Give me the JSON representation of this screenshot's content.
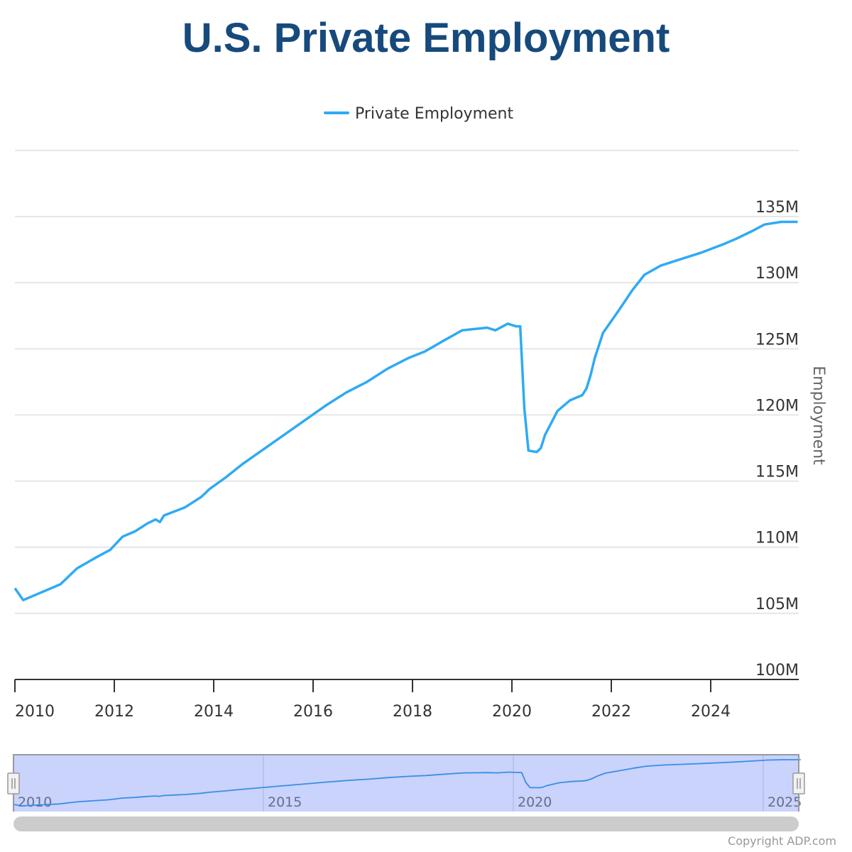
{
  "colors": {
    "title": "#174a7c",
    "series": "#2eaaf5",
    "navigator_mask": "#c9d3fc",
    "scrollbar": "#cccccc",
    "grid": "#e6e6e6"
  },
  "copyright": "Copyright ADP.com",
  "chart_data": {
    "type": "line",
    "title": "U.S. Private Employment",
    "ylabel": "Employment",
    "xlabel": "",
    "legend": {
      "position": "top-center",
      "entries": [
        "Private Employment"
      ]
    },
    "grid": true,
    "ylim": [
      100000000,
      140000000
    ],
    "y_ticks": [
      "100M",
      "105M",
      "110M",
      "115M",
      "120M",
      "125M",
      "130M",
      "135M"
    ],
    "y_tick_values": [
      100000000,
      105000000,
      110000000,
      115000000,
      120000000,
      125000000,
      130000000,
      135000000
    ],
    "x_ticks": [
      "2010",
      "2012",
      "2014",
      "2016",
      "2018",
      "2020",
      "2022",
      "2024"
    ],
    "xlim": [
      "2010-01",
      "2025-10"
    ],
    "navigator_ticks": [
      "2010",
      "2015",
      "2020",
      "2025"
    ],
    "series": [
      {
        "name": "Private Employment",
        "points": [
          [
            "2010-01",
            106.9
          ],
          [
            "2010-03",
            106.0
          ],
          [
            "2010-12",
            107.2
          ],
          [
            "2011-04",
            108.4
          ],
          [
            "2011-09",
            109.3
          ],
          [
            "2011-12",
            109.8
          ],
          [
            "2012-03",
            110.8
          ],
          [
            "2012-06",
            111.2
          ],
          [
            "2012-09",
            111.8
          ],
          [
            "2012-11",
            112.1
          ],
          [
            "2012-12",
            111.9
          ],
          [
            "2013-01",
            112.4
          ],
          [
            "2013-06",
            113.0
          ],
          [
            "2013-10",
            113.8
          ],
          [
            "2013-12",
            114.4
          ],
          [
            "2014-04",
            115.3
          ],
          [
            "2014-08",
            116.3
          ],
          [
            "2015-01",
            117.4
          ],
          [
            "2015-06",
            118.5
          ],
          [
            "2015-11",
            119.6
          ],
          [
            "2016-04",
            120.7
          ],
          [
            "2016-09",
            121.7
          ],
          [
            "2017-02",
            122.5
          ],
          [
            "2017-07",
            123.5
          ],
          [
            "2017-12",
            124.3
          ],
          [
            "2018-04",
            124.8
          ],
          [
            "2018-09",
            125.7
          ],
          [
            "2019-01",
            126.4
          ],
          [
            "2019-07",
            126.6
          ],
          [
            "2019-09",
            126.4
          ],
          [
            "2019-12",
            126.9
          ],
          [
            "2020-02",
            126.7
          ],
          [
            "2020-03",
            126.7
          ],
          [
            "2020-04",
            120.5
          ],
          [
            "2020-05",
            117.3
          ],
          [
            "2020-07",
            117.2
          ],
          [
            "2020-08",
            117.5
          ],
          [
            "2020-09",
            118.5
          ],
          [
            "2020-12",
            120.3
          ],
          [
            "2021-03",
            121.1
          ],
          [
            "2021-06",
            121.5
          ],
          [
            "2021-07",
            122.0
          ],
          [
            "2021-08",
            123.0
          ],
          [
            "2021-09",
            124.3
          ],
          [
            "2021-11",
            126.2
          ],
          [
            "2022-01",
            127.1
          ],
          [
            "2022-03",
            128.0
          ],
          [
            "2022-06",
            129.4
          ],
          [
            "2022-09",
            130.6
          ],
          [
            "2023-01",
            131.3
          ],
          [
            "2023-06",
            131.8
          ],
          [
            "2023-11",
            132.3
          ],
          [
            "2024-04",
            132.9
          ],
          [
            "2024-07",
            133.3
          ],
          [
            "2024-11",
            133.9
          ],
          [
            "2025-02",
            134.4
          ],
          [
            "2025-06",
            134.6
          ],
          [
            "2025-10",
            134.6
          ]
        ],
        "unit": "millions"
      }
    ]
  }
}
